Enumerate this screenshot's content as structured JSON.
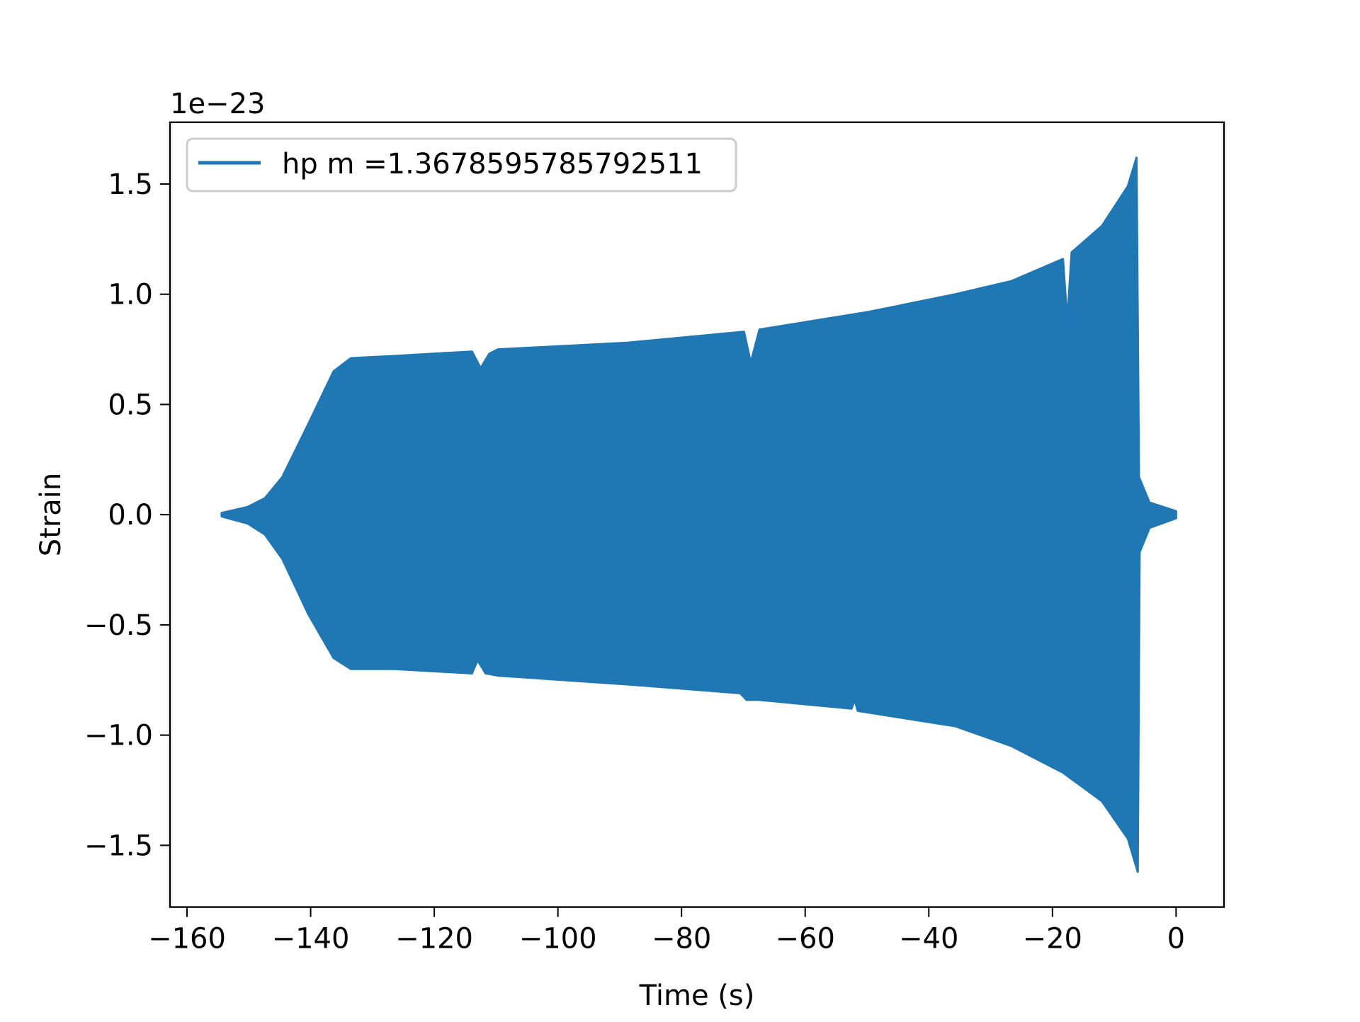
{
  "chart_data": {
    "type": "line",
    "title": "",
    "xlabel": "Time (s)",
    "ylabel": "Strain",
    "y_offset_label": "1e−23",
    "xlim": [
      -162.75,
      7.75
    ],
    "ylim": [
      -1.78,
      1.78
    ],
    "grid": false,
    "legend_placement": "upper left",
    "x_ticks": [
      -160,
      -140,
      -120,
      -100,
      -80,
      -60,
      -40,
      -20,
      0
    ],
    "x_tick_labels": [
      "−160",
      "−140",
      "−120",
      "−100",
      "−80",
      "−60",
      "−40",
      "−20",
      "0"
    ],
    "y_ticks": [
      -1.5,
      -1.0,
      -0.5,
      0.0,
      0.5,
      1.0,
      1.5
    ],
    "y_tick_labels": [
      "−1.5",
      "−1.0",
      "−0.5",
      "0.0",
      "0.5",
      "1.0",
      "1.5"
    ],
    "series": [
      {
        "name": "hp m =1.3678595785792511",
        "color": "#1f77b4",
        "note_envelope": "upper/lower amplitude envelope of the oscillating strain (units of 1e-23)",
        "upper": [
          [
            -154.4,
            0.008
          ],
          [
            -150.2,
            0.035
          ],
          [
            -147.4,
            0.075
          ],
          [
            -144.6,
            0.17
          ],
          [
            -140.4,
            0.41
          ],
          [
            -136.3,
            0.65
          ],
          [
            -133.5,
            0.71
          ],
          [
            -126.5,
            0.72
          ],
          [
            -113.9,
            0.74
          ],
          [
            -112.5,
            0.665
          ],
          [
            -111.1,
            0.73
          ],
          [
            -109.7,
            0.75
          ],
          [
            -88.8,
            0.78
          ],
          [
            -69.9,
            0.83
          ],
          [
            -68.8,
            0.69
          ],
          [
            -67.4,
            0.84
          ],
          [
            -49.7,
            0.92
          ],
          [
            -35.7,
            1.0
          ],
          [
            -26.6,
            1.06
          ],
          [
            -18.3,
            1.16
          ],
          [
            -17.6,
            0.88
          ],
          [
            -16.9,
            1.19
          ],
          [
            -12.0,
            1.31
          ],
          [
            -7.8,
            1.49
          ],
          [
            -6.4,
            1.62
          ],
          [
            -6.0,
            0.17
          ],
          [
            -4.3,
            0.055
          ],
          [
            0.0,
            0.016
          ]
        ],
        "lower": [
          [
            -154.4,
            -0.008
          ],
          [
            -150.2,
            -0.04
          ],
          [
            -147.4,
            -0.09
          ],
          [
            -144.6,
            -0.2
          ],
          [
            -140.4,
            -0.45
          ],
          [
            -136.3,
            -0.65
          ],
          [
            -133.5,
            -0.7
          ],
          [
            -126.5,
            -0.7
          ],
          [
            -113.9,
            -0.72
          ],
          [
            -113.0,
            -0.66
          ],
          [
            -111.7,
            -0.72
          ],
          [
            -109.7,
            -0.73
          ],
          [
            -88.8,
            -0.77
          ],
          [
            -70.5,
            -0.81
          ],
          [
            -69.5,
            -0.84
          ],
          [
            -67.4,
            -0.84
          ],
          [
            -52.5,
            -0.88
          ],
          [
            -52.0,
            -0.84
          ],
          [
            -51.5,
            -0.89
          ],
          [
            -35.7,
            -0.96
          ],
          [
            -26.6,
            -1.05
          ],
          [
            -18.3,
            -1.17
          ],
          [
            -12.0,
            -1.3
          ],
          [
            -7.8,
            -1.47
          ],
          [
            -6.2,
            -1.62
          ],
          [
            -5.9,
            -0.17
          ],
          [
            -4.3,
            -0.06
          ],
          [
            0.0,
            -0.016
          ]
        ]
      }
    ]
  }
}
